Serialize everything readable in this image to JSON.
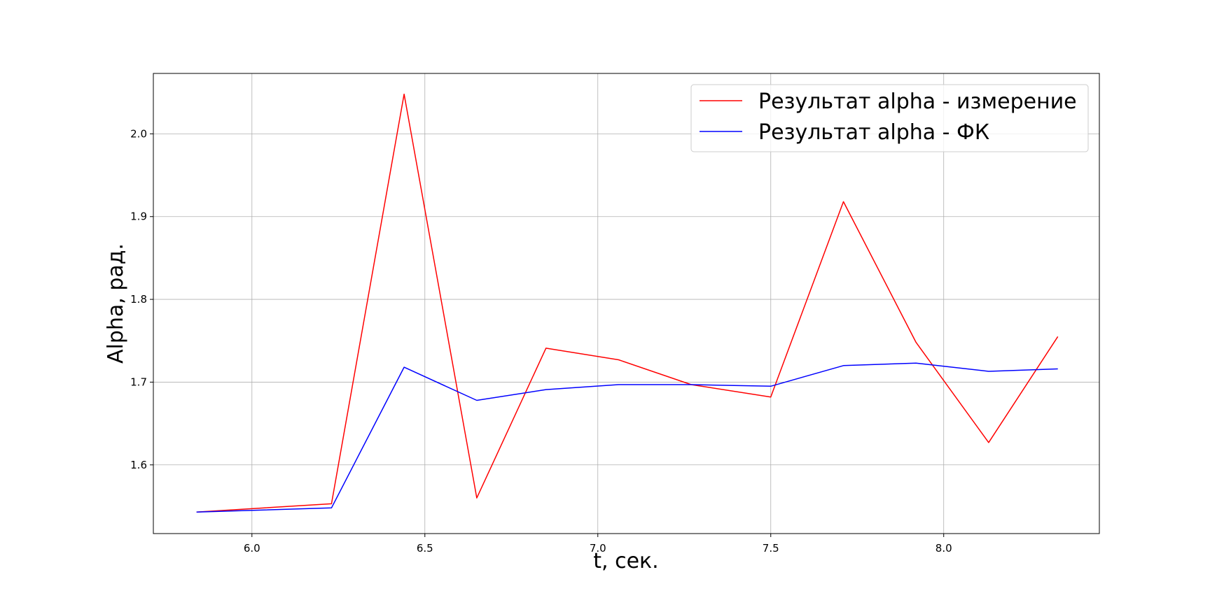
{
  "chart_data": {
    "type": "line",
    "title": "",
    "xlabel": "t, сек.",
    "ylabel": "Alpha, рад.",
    "xlim": [
      5.715,
      8.45
    ],
    "ylim": [
      1.517,
      2.073
    ],
    "xticks": [
      6.0,
      6.5,
      7.0,
      7.5,
      8.0
    ],
    "xtick_labels": [
      "6.0",
      "6.5",
      "7.0",
      "7.5",
      "8.0"
    ],
    "yticks": [
      1.6,
      1.7,
      1.8,
      1.9,
      2.0
    ],
    "ytick_labels": [
      "1.6",
      "1.7",
      "1.8",
      "1.9",
      "2.0"
    ],
    "grid": true,
    "legend_position": "top-right",
    "x": [
      5.84,
      6.23,
      6.44,
      6.65,
      6.85,
      7.06,
      7.27,
      7.5,
      7.71,
      7.92,
      8.13,
      8.33
    ],
    "series": [
      {
        "name": "Результат alpha - измерение",
        "color": "#ff0000",
        "values": [
          1.543,
          1.553,
          2.048,
          1.56,
          1.741,
          1.727,
          1.697,
          1.682,
          1.918,
          1.748,
          1.627,
          1.755
        ]
      },
      {
        "name": "Результат alpha - ФК",
        "color": "#0000ff",
        "values": [
          1.543,
          1.548,
          1.718,
          1.678,
          1.691,
          1.697,
          1.697,
          1.695,
          1.72,
          1.723,
          1.713,
          1.716
        ]
      }
    ]
  }
}
